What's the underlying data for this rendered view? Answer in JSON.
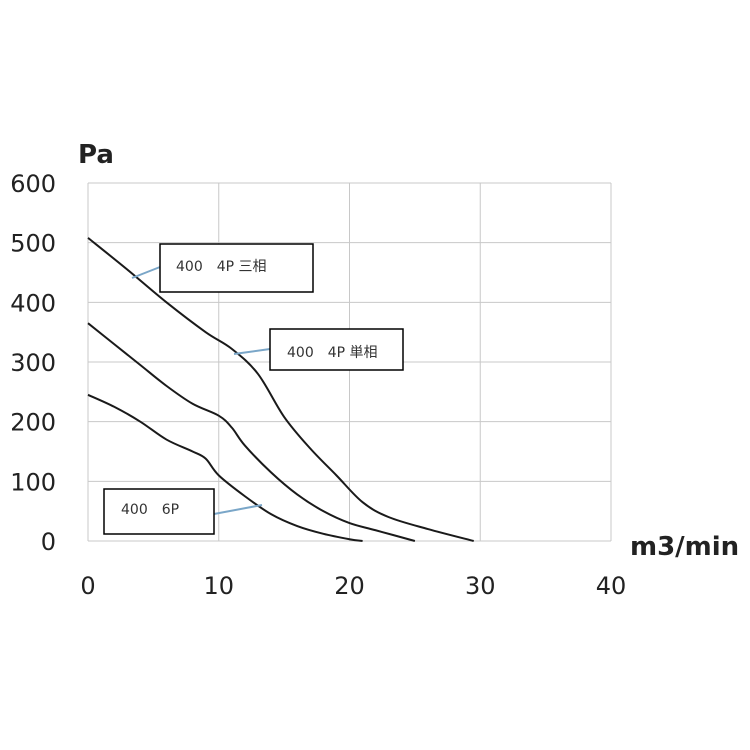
{
  "chart_data": {
    "type": "line",
    "title": "",
    "ylabel": "Pa",
    "xlabel": "m3/min",
    "xlim": [
      0,
      40
    ],
    "ylim": [
      0,
      600
    ],
    "xticks": [
      "0",
      "10",
      "20",
      "30",
      "40"
    ],
    "yticks": [
      "0",
      "100",
      "200",
      "300",
      "400",
      "500",
      "600"
    ],
    "grid": true,
    "legend": "callout boxes",
    "series": [
      {
        "name": "400　4P 三相",
        "x": [
          0,
          3,
          6,
          9,
          11,
          13,
          15,
          17,
          19,
          21,
          23,
          26,
          29.5
        ],
        "y": [
          508,
          455,
          400,
          350,
          322,
          280,
          208,
          155,
          110,
          65,
          40,
          20,
          0
        ]
      },
      {
        "name": "400　4P 単相",
        "x": [
          0,
          2,
          4,
          6,
          8,
          10,
          11,
          12,
          14,
          16,
          18,
          20,
          22,
          25
        ],
        "y": [
          365,
          330,
          295,
          260,
          230,
          210,
          190,
          160,
          115,
          78,
          50,
          30,
          18,
          0
        ]
      },
      {
        "name": "400　6P",
        "x": [
          0,
          2,
          4,
          6,
          8,
          9,
          10,
          12,
          14,
          16,
          18,
          20,
          21
        ],
        "y": [
          245,
          225,
          200,
          170,
          150,
          138,
          110,
          75,
          45,
          25,
          12,
          3,
          0
        ]
      }
    ]
  }
}
